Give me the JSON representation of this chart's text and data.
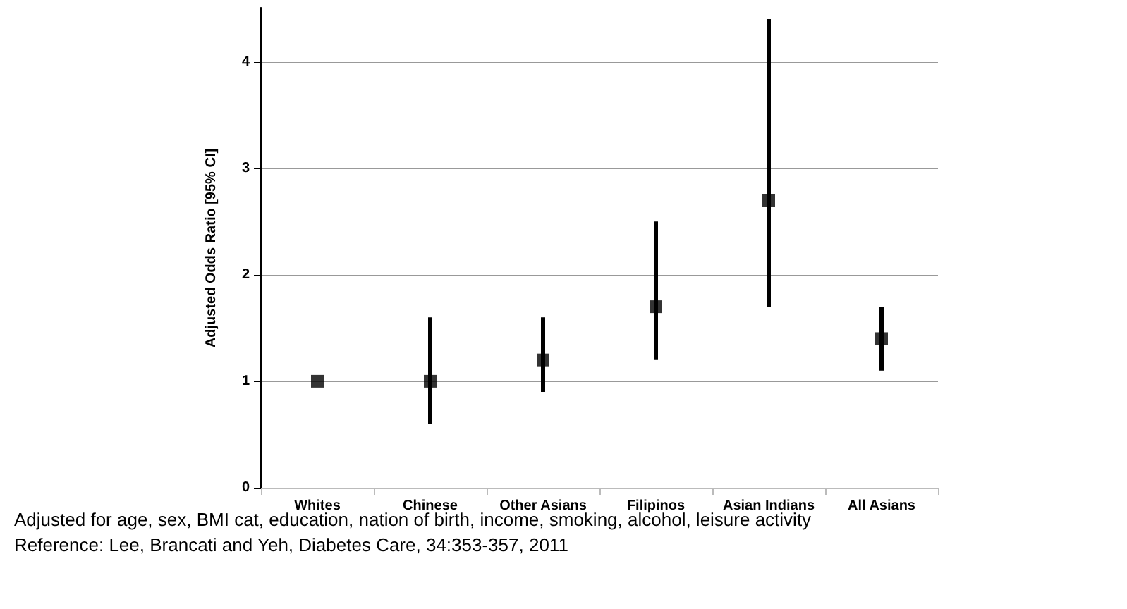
{
  "chart_data": {
    "type": "scatter",
    "ylabel": "Adjusted Odds Ratio [95% CI]",
    "categories": [
      "Whites",
      "Chinese",
      "Other Asians",
      "Filipinos",
      "Asian Indians",
      "All Asians"
    ],
    "values": [
      1,
      1,
      1.2,
      1.7,
      2.7,
      1.4
    ],
    "errors": [
      null,
      [
        0.6,
        1.6
      ],
      [
        0.9,
        1.6
      ],
      [
        1.2,
        2.5
      ],
      [
        1.7,
        4.4
      ],
      [
        1.1,
        1.7
      ]
    ],
    "color": "#000000",
    "marker": "square",
    "ylim": [
      0,
      4.5
    ],
    "yticks": [
      0,
      1,
      2,
      3,
      4
    ],
    "grid": "y",
    "annotations": [
      "Adjusted for age, sex, BMI cat, education, nation of birth, income, smoking, alcohol, leisure activity",
      "Reference: Lee, Brancati and Yeh, Diabetes Care, 34:353-357, 2011"
    ]
  }
}
